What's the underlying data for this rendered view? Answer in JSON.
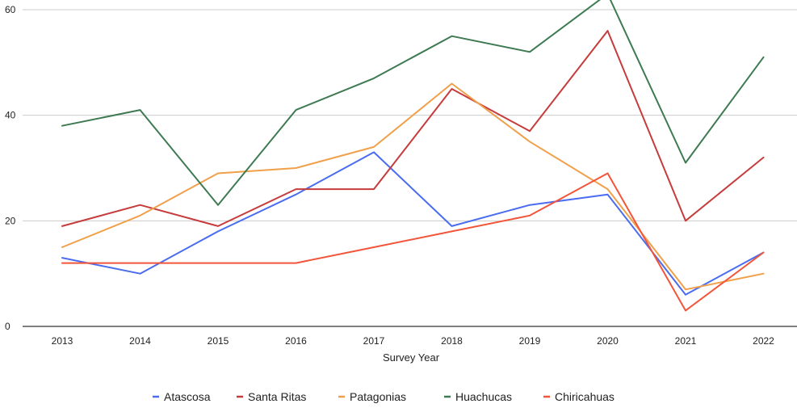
{
  "chart_data": {
    "type": "line",
    "title": "",
    "xlabel": "Survey Year",
    "ylabel": "",
    "x": [
      "2013",
      "2014",
      "2015",
      "2016",
      "2017",
      "2018",
      "2019",
      "2020",
      "2021",
      "2022"
    ],
    "ylim": [
      0,
      60
    ],
    "yticks": [
      "0",
      "20",
      "40",
      "60"
    ],
    "grid": true,
    "legend_position": "bottom",
    "series": [
      {
        "name": "Atascosa",
        "color": "#4a6cf0",
        "values": [
          13,
          10,
          18,
          25,
          33,
          19,
          23,
          25,
          6,
          14
        ]
      },
      {
        "name": "Santa Ritas",
        "color": "#c63c3c",
        "values": [
          19,
          23,
          19,
          26,
          26,
          45,
          37,
          56,
          20,
          32
        ]
      },
      {
        "name": "Patagonias",
        "color": "#f0a04b",
        "values": [
          15,
          21,
          29,
          30,
          34,
          46,
          35,
          26,
          7,
          10
        ]
      },
      {
        "name": "Huachucas",
        "color": "#3e7a52",
        "values": [
          38,
          41,
          23,
          41,
          47,
          55,
          52,
          63,
          31,
          51
        ]
      },
      {
        "name": "Chiricahuas",
        "color": "#f2553a",
        "values": [
          12,
          12,
          12,
          12,
          15,
          18,
          21,
          29,
          3,
          14
        ]
      }
    ]
  }
}
